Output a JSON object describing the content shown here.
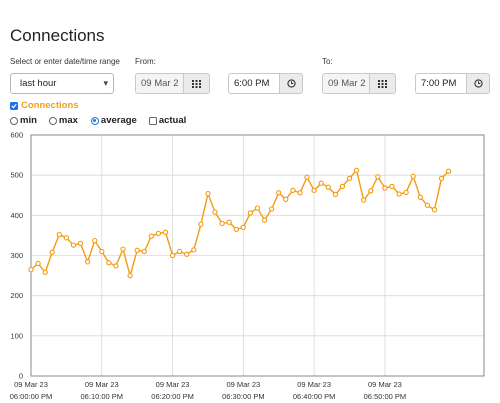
{
  "page": {
    "title": "Connections"
  },
  "range": {
    "label": "Select or enter date/time range",
    "selected": "last hour"
  },
  "from": {
    "label": "From:",
    "date": "09 Mar 2",
    "time": "6:00 PM"
  },
  "to": {
    "label": "To:",
    "date": "09 Mar 2",
    "time": "7:00 PM"
  },
  "series_toggle": {
    "label": "Connections",
    "checked": true
  },
  "aggregation": {
    "options": [
      {
        "label": "min",
        "selected": false
      },
      {
        "label": "max",
        "selected": false
      },
      {
        "label": "average",
        "selected": true
      }
    ],
    "actual": {
      "label": "actual",
      "checked": false
    }
  },
  "colors": {
    "series": "#f39c12",
    "accent": "#1a73e8",
    "grid": "#d8d8d8"
  },
  "chart_data": {
    "type": "line",
    "ylim": [
      0,
      600
    ],
    "yticks": [
      0,
      100,
      200,
      300,
      400,
      500,
      600
    ],
    "xticks": [
      {
        "date": "09 Mar 23",
        "time": "06:00:00 PM"
      },
      {
        "date": "09 Mar 23",
        "time": "06:10:00 PM"
      },
      {
        "date": "09 Mar 23",
        "time": "06:20:00 PM"
      },
      {
        "date": "09 Mar 23",
        "time": "06:30:00 PM"
      },
      {
        "date": "09 Mar 23",
        "time": "06:40:00 PM"
      },
      {
        "date": "09 Mar 23",
        "time": "06:50:00 PM"
      }
    ],
    "x_minutes_range": [
      0,
      60
    ],
    "grid": true,
    "series": [
      {
        "values": [
          [
            0,
            265
          ],
          [
            1,
            280
          ],
          [
            2,
            258
          ],
          [
            3,
            308
          ],
          [
            4,
            352
          ],
          [
            5,
            344
          ],
          [
            6,
            326
          ],
          [
            7,
            330
          ],
          [
            8,
            284
          ],
          [
            9,
            337
          ],
          [
            10,
            310
          ],
          [
            11,
            282
          ],
          [
            12,
            274
          ],
          [
            13,
            316
          ],
          [
            14,
            250
          ],
          [
            15,
            313
          ],
          [
            16,
            310
          ],
          [
            17,
            348
          ],
          [
            18,
            355
          ],
          [
            19,
            358
          ],
          [
            20,
            300
          ],
          [
            21,
            310
          ],
          [
            22,
            303
          ],
          [
            23,
            314
          ],
          [
            24,
            378
          ],
          [
            25,
            454
          ],
          [
            26,
            408
          ],
          [
            27,
            380
          ],
          [
            28,
            383
          ],
          [
            29,
            365
          ],
          [
            30,
            370
          ],
          [
            31,
            406
          ],
          [
            32,
            418
          ],
          [
            33,
            388
          ],
          [
            34,
            416
          ],
          [
            35,
            456
          ],
          [
            36,
            440
          ],
          [
            37,
            462
          ],
          [
            38,
            456
          ],
          [
            39,
            495
          ],
          [
            40,
            462
          ],
          [
            41,
            480
          ],
          [
            42,
            470
          ],
          [
            43,
            452
          ],
          [
            44,
            472
          ],
          [
            45,
            492
          ],
          [
            46,
            512
          ],
          [
            47,
            438
          ],
          [
            48,
            461
          ],
          [
            49,
            496
          ],
          [
            50,
            468
          ],
          [
            51,
            472
          ],
          [
            52,
            453
          ],
          [
            53,
            457
          ],
          [
            54,
            497
          ],
          [
            55,
            445
          ],
          [
            56,
            425
          ],
          [
            57,
            414
          ],
          [
            58,
            492
          ],
          [
            59,
            510
          ]
        ]
      }
    ]
  }
}
